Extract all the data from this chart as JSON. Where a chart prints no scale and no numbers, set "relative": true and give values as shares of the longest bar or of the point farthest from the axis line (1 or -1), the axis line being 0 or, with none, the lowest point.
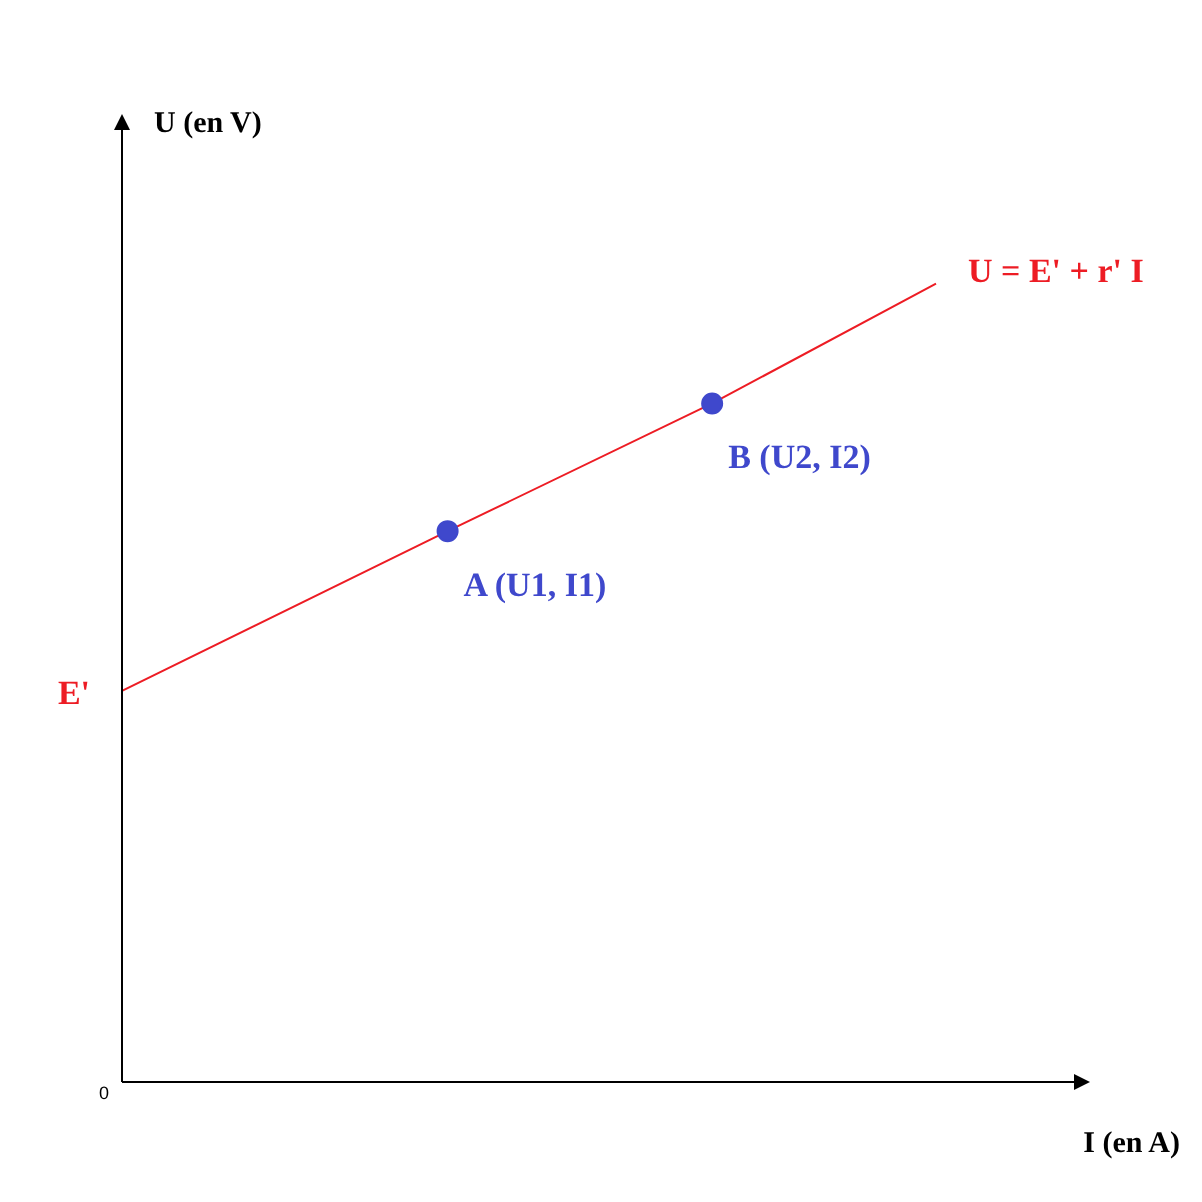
{
  "chart_data": {
    "type": "line",
    "relative": true,
    "xlabel": "I (en A)",
    "ylabel": "U (en V)",
    "legend": false,
    "categories": [
      null,
      null,
      null,
      null,
      null,
      null,
      null,
      null,
      null,
      null,
      null,
      null,
      null,
      null,
      null,
      null,
      null,
      null,
      null,
      null,
      null,
      null,
      null,
      null,
      null,
      null,
      null,
      null,
      null,
      null,
      null,
      null,
      null,
      null,
      null,
      null,
      null,
      null,
      null,
      null,
      null
    ],
    "series": [
      {
        "name": "U = E' + r' I",
        "type": "line",
        "color": "#ed1c24",
        "marker": "circle",
        "values": [
          0.49,
          null,
          null,
          null,
          null,
          null,
          null,
          null,
          null,
          null,
          null,
          null,
          null,
          null,
          null,
          null,
          0.69,
          null,
          null,
          null,
          null,
          null,
          null,
          null,
          null,
          null,
          null,
          null,
          null,
          0.85,
          null,
          null,
          null,
          null,
          null,
          null,
          null,
          null,
          null,
          null,
          1
        ],
        "colors": [
          null,
          null,
          null,
          null,
          null,
          null,
          null,
          null,
          null,
          null,
          null,
          null,
          null,
          null,
          null,
          null,
          "#3f48cc",
          null,
          null,
          null,
          null,
          null,
          null,
          null,
          null,
          null,
          null,
          null,
          null,
          "#3f48cc",
          null,
          null,
          null,
          null,
          null,
          null,
          null,
          null,
          null,
          null,
          null
        ]
      }
    ],
    "annotations": [
      "A (U1, I1)",
      "B (U2, I2)",
      "E'",
      "0"
    ]
  }
}
